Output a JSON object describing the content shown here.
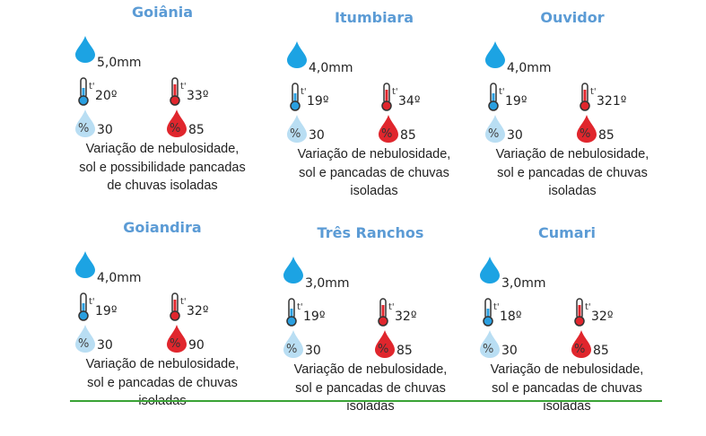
{
  "colors": {
    "title": "#5b9bd5",
    "rain": "#1ca3e3",
    "cold": "#2a9fe0",
    "hot": "#e0262d",
    "humid_low": "#b9def3",
    "humid_high": "#e0262d"
  },
  "cities": [
    {
      "name": "Goiânia",
      "rain": "5,0mm",
      "min": "20º",
      "max": "33º",
      "hum_min": "30",
      "hum_max": "85",
      "desc": [
        "Variação de nebulosidade,",
        "sol e possibilidade pancadas",
        "de chuvas isoladas"
      ]
    },
    {
      "name": "Itumbiara",
      "rain": "4,0mm",
      "min": "19º",
      "max": "34º",
      "hum_min": "30",
      "hum_max": "85",
      "desc": [
        "Variação de nebulosidade,",
        "sol e pancadas de chuvas",
        "isoladas"
      ]
    },
    {
      "name": "Ouvidor",
      "rain": "4,0mm",
      "min": "19º",
      "max": "321º",
      "hum_min": "30",
      "hum_max": "85",
      "desc": [
        "Variação de nebulosidade,",
        "sol e pancadas de chuvas",
        "isoladas"
      ]
    },
    {
      "name": "Goiandira",
      "rain": "4,0mm",
      "min": "19º",
      "max": "32º",
      "hum_min": "30",
      "hum_max": "90",
      "desc": [
        "Variação de nebulosidade,",
        "sol e pancadas de chuvas",
        "isoladas"
      ]
    },
    {
      "name": "Três Ranchos",
      "rain": "3,0mm",
      "min": "19º",
      "max": "32º",
      "hum_min": "30",
      "hum_max": "85",
      "desc": [
        "Variação de nebulosidade,",
        "sol e pancadas de chuvas",
        "isoladas"
      ]
    },
    {
      "name": "Cumari",
      "rain": "3,0mm",
      "min": "18º",
      "max": "32º",
      "hum_min": "30",
      "hum_max": "85",
      "desc": [
        "Variação de nebulosidade,",
        "sol e pancadas de chuvas",
        "isoladas"
      ]
    }
  ],
  "icons": {
    "rain": "raindrop-icon",
    "temp": "thermometer-icon",
    "humidity": "humidity-drop-icon"
  }
}
